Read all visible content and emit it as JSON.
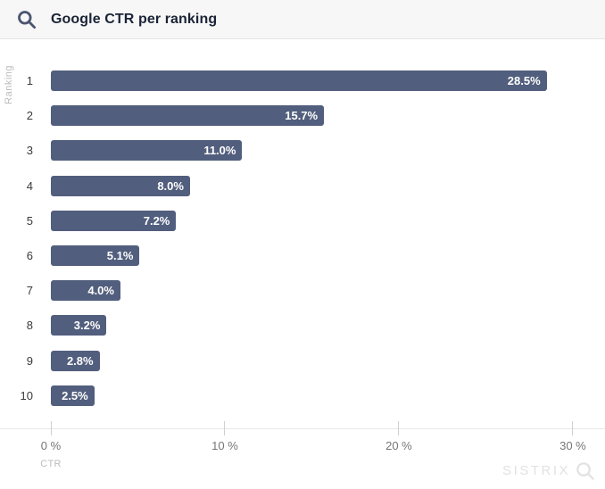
{
  "header": {
    "title": "Google CTR per ranking",
    "search_icon": "magnifier-icon",
    "icon_color": "#4a5570"
  },
  "chart_data": {
    "type": "bar",
    "orientation": "horizontal",
    "title": "Google CTR per ranking",
    "categories": [
      "1",
      "2",
      "3",
      "4",
      "5",
      "6",
      "7",
      "8",
      "9",
      "10"
    ],
    "values": [
      28.5,
      15.7,
      11.0,
      8.0,
      7.2,
      5.1,
      4.0,
      3.2,
      2.8,
      2.5
    ],
    "value_labels": [
      "28.5%",
      "15.7%",
      "11.0%",
      "8.0%",
      "7.2%",
      "5.1%",
      "4.0%",
      "3.2%",
      "2.8%",
      "2.5%"
    ],
    "xlabel": "CTR",
    "ylabel": "Ranking",
    "xlim": [
      0,
      31.85
    ],
    "x_ticks": [
      0,
      10,
      20,
      30
    ],
    "x_tick_labels": [
      "0 %",
      "10 %",
      "20 %",
      "30 %"
    ],
    "bar_color": "#525e7d",
    "value_label_color": "#ffffff",
    "grid": false,
    "legend": false
  },
  "watermark": {
    "text": "SISTRIX",
    "icon": "magnifier-icon",
    "color": "#e2e2e2"
  }
}
